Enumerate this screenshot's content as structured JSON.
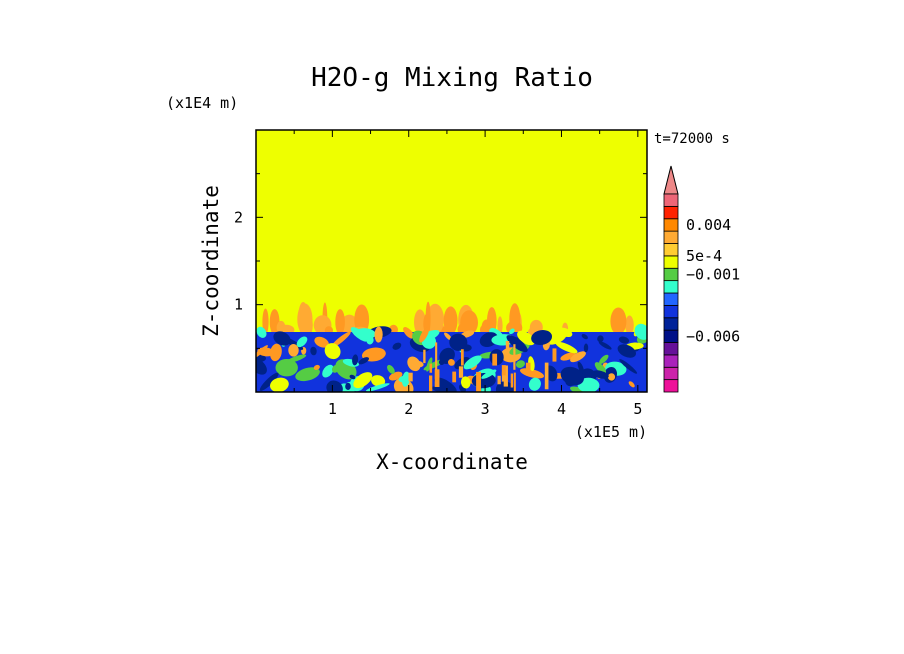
{
  "colors": {
    "background": "#ffffff",
    "axis": "#000000",
    "field": "#eeff00",
    "band_light": "#ffaa33",
    "band_orange": "#ff9922",
    "cyan": "#33ffcc",
    "green": "#55cc44",
    "blue": "#1133dd",
    "navy": "#002288"
  },
  "chart_data": {
    "type": "heatmap",
    "title": "H2O-g Mixing Ratio",
    "xlabel": "X-coordinate",
    "ylabel": "Z-coordinate",
    "x_scale_label": "(x1E5 m)",
    "y_scale_label": "(x1E4 m)",
    "time_label": "t=72000 s",
    "xlim": [
      0,
      5.12
    ],
    "ylim": [
      0,
      3.0
    ],
    "x_ticks": [
      1,
      2,
      3,
      4,
      5
    ],
    "x_tick_labels": [
      "1",
      "2",
      "3",
      "4",
      "5"
    ],
    "y_ticks": [
      1,
      2
    ],
    "y_tick_labels": [
      "1",
      "2"
    ],
    "regions": [
      {
        "name": "upper-field",
        "z_range": [
          1.05,
          3.0
        ],
        "color": "#eeff00",
        "description": "uniform mixing ratio above boundary layer"
      },
      {
        "name": "orange-plumes",
        "z_range": [
          0.7,
          1.05
        ],
        "color": "#ffaa33"
      },
      {
        "name": "boundary-layer",
        "z_range": [
          0,
          0.7
        ],
        "color": "#1133dd"
      }
    ],
    "colorbar": {
      "extend": "max",
      "levels": [
        {
          "color": "#ee1199"
        },
        {
          "color": "#cc22aa"
        },
        {
          "color": "#aa22bb"
        },
        {
          "color": "#661199"
        },
        {
          "color": "#001188"
        },
        {
          "color": "#002299"
        },
        {
          "color": "#1133dd"
        },
        {
          "color": "#2266ff"
        },
        {
          "color": "#33ffcc"
        },
        {
          "color": "#55cc44"
        },
        {
          "color": "#eeff00"
        },
        {
          "color": "#ffcc33"
        },
        {
          "color": "#ffaa33"
        },
        {
          "color": "#ff8800"
        },
        {
          "color": "#ff2200"
        },
        {
          "color": "#ee6677"
        }
      ],
      "extend_color": "#ee8888",
      "labels": [
        {
          "text": "0.004",
          "at_level": 13.5
        },
        {
          "text": "5e-4",
          "at_level": 11.0
        },
        {
          "text": "−0.001",
          "at_level": 9.5
        },
        {
          "text": "−0.006",
          "at_level": 4.5
        }
      ]
    }
  }
}
